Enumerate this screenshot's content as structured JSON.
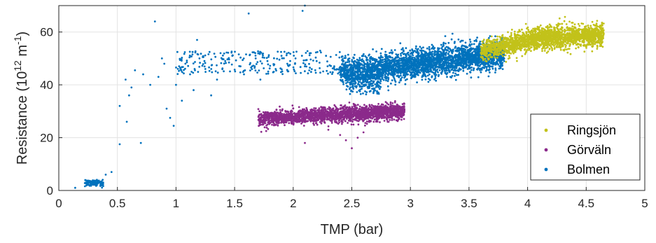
{
  "chart_data": {
    "type": "scatter",
    "title": "",
    "xlabel": "TMP (bar)",
    "ylabel_main": "Resistance (10",
    "ylabel_exp": "12",
    "ylabel_unit": " m",
    "ylabel_exp2": "-1",
    "ylabel_close": ")",
    "xlim": [
      0,
      5
    ],
    "ylim": [
      0,
      70
    ],
    "xticks": [
      "0",
      "0.5",
      "1",
      "1.5",
      "2",
      "2.5",
      "3",
      "3.5",
      "4",
      "4.5",
      "5"
    ],
    "yticks": [
      "0",
      "20",
      "40",
      "60"
    ],
    "grid": true,
    "legend_position": "lower-right",
    "series": [
      {
        "name": "Ringsjön",
        "color": "#c2c21a",
        "x_range": [
          3.6,
          4.65
        ],
        "trend": [
          [
            3.6,
            53
          ],
          [
            4.1,
            57.5
          ],
          [
            4.6,
            59
          ]
        ],
        "spread": 2.0,
        "count": 2200
      },
      {
        "name": "Görväln",
        "color": "#8b2a8b",
        "x_range": [
          1.7,
          2.95
        ],
        "trend": [
          [
            1.7,
            27
          ],
          [
            2.3,
            28.5
          ],
          [
            2.95,
            30
          ]
        ],
        "spread": 1.4,
        "count": 2200,
        "outliers": [
          [
            2.1,
            18
          ],
          [
            2.5,
            16
          ],
          [
            2.55,
            20
          ],
          [
            2.6,
            22
          ],
          [
            2.4,
            21
          ],
          [
            2.3,
            23
          ],
          [
            2.45,
            19
          ]
        ]
      },
      {
        "name": "Bolmen",
        "color": "#0072bd",
        "x_range": [
          2.4,
          3.8
        ],
        "trend": [
          [
            2.4,
            45
          ],
          [
            3.0,
            47.5
          ],
          [
            3.8,
            52
          ]
        ],
        "spread": 2.6,
        "count": 3000,
        "cluster_low": {
          "x_range": [
            0.22,
            0.38
          ],
          "y": 2.8,
          "spread": 0.6,
          "count": 120
        },
        "sparse": [
          [
            0.14,
            1
          ],
          [
            0.4,
            6
          ],
          [
            0.45,
            7
          ],
          [
            0.52,
            17.5
          ],
          [
            0.52,
            32
          ],
          [
            0.57,
            42
          ],
          [
            0.58,
            26
          ],
          [
            0.6,
            36
          ],
          [
            0.62,
            39
          ],
          [
            0.65,
            45.5
          ],
          [
            0.7,
            18
          ],
          [
            0.72,
            44
          ],
          [
            0.78,
            40
          ],
          [
            0.82,
            64
          ],
          [
            0.85,
            43
          ],
          [
            0.88,
            50
          ],
          [
            0.9,
            48
          ],
          [
            0.92,
            31
          ],
          [
            0.95,
            27.5
          ],
          [
            0.98,
            24.5
          ],
          [
            1.0,
            40
          ],
          [
            1.05,
            34
          ],
          [
            1.08,
            48
          ],
          [
            1.12,
            44
          ],
          [
            1.15,
            38
          ],
          [
            1.18,
            57
          ],
          [
            1.2,
            50
          ],
          [
            1.25,
            46
          ],
          [
            1.3,
            36
          ],
          [
            1.35,
            42
          ],
          [
            1.38,
            52
          ],
          [
            1.42,
            49
          ],
          [
            1.48,
            51
          ],
          [
            1.55,
            47
          ],
          [
            1.58,
            44
          ],
          [
            1.62,
            67
          ],
          [
            1.68,
            50
          ],
          [
            1.72,
            42
          ],
          [
            1.78,
            49
          ],
          [
            1.85,
            46
          ],
          [
            1.9,
            51
          ],
          [
            1.95,
            48
          ],
          [
            2.02,
            50
          ],
          [
            2.08,
            68
          ],
          [
            2.1,
            47
          ],
          [
            2.15,
            52
          ],
          [
            2.2,
            49
          ],
          [
            2.28,
            51
          ],
          [
            2.35,
            47
          ],
          [
            2.1,
            70
          ]
        ],
        "sparse_band": {
          "x_range": [
            1.0,
            2.45
          ],
          "y_range": [
            44,
            53
          ],
          "count": 260
        },
        "low_tail": {
          "x_range": [
            2.45,
            2.75
          ],
          "y_range": [
            36,
            44
          ],
          "count": 200
        }
      }
    ]
  }
}
